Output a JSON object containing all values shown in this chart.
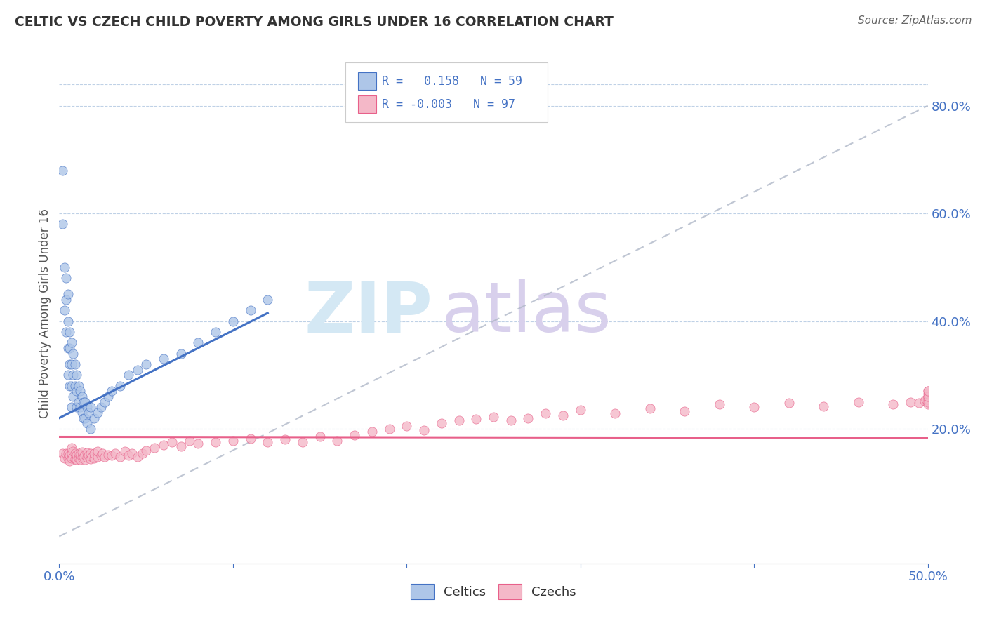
{
  "title": "CELTIC VS CZECH CHILD POVERTY AMONG GIRLS UNDER 16 CORRELATION CHART",
  "source": "Source: ZipAtlas.com",
  "ylabel": "Child Poverty Among Girls Under 16",
  "xlim": [
    0.0,
    0.5
  ],
  "ylim": [
    -0.05,
    0.88
  ],
  "yticks_right": [
    0.2,
    0.4,
    0.6,
    0.8
  ],
  "ytick_right_labels": [
    "20.0%",
    "40.0%",
    "60.0%",
    "80.0%"
  ],
  "celtics_color": "#aec6e8",
  "czechs_color": "#f4b8c8",
  "celtics_line_color": "#4472c4",
  "czechs_line_color": "#e8608a",
  "diag_line_color": "#b0b8c8",
  "legend_text_color": "#4472c4",
  "watermark_zip_color": "#d4e8f4",
  "watermark_atlas_color": "#d8d0ec",
  "celtic_line_x0": 0.0,
  "celtic_line_x1": 0.12,
  "celtic_line_y0": 0.22,
  "celtic_line_y1": 0.415,
  "czech_line_x0": 0.0,
  "czech_line_x1": 0.5,
  "czech_line_y0": 0.185,
  "czech_line_y1": 0.183,
  "celtics_x": [
    0.002,
    0.002,
    0.003,
    0.003,
    0.004,
    0.004,
    0.004,
    0.005,
    0.005,
    0.005,
    0.005,
    0.006,
    0.006,
    0.006,
    0.006,
    0.007,
    0.007,
    0.007,
    0.007,
    0.008,
    0.008,
    0.008,
    0.009,
    0.009,
    0.01,
    0.01,
    0.01,
    0.011,
    0.011,
    0.012,
    0.012,
    0.013,
    0.013,
    0.014,
    0.014,
    0.015,
    0.015,
    0.016,
    0.016,
    0.017,
    0.018,
    0.018,
    0.02,
    0.022,
    0.024,
    0.026,
    0.028,
    0.03,
    0.035,
    0.04,
    0.045,
    0.05,
    0.06,
    0.07,
    0.08,
    0.09,
    0.1,
    0.11,
    0.12
  ],
  "celtics_y": [
    0.68,
    0.58,
    0.5,
    0.42,
    0.48,
    0.44,
    0.38,
    0.45,
    0.4,
    0.35,
    0.3,
    0.38,
    0.35,
    0.32,
    0.28,
    0.36,
    0.32,
    0.28,
    0.24,
    0.34,
    0.3,
    0.26,
    0.32,
    0.28,
    0.3,
    0.27,
    0.24,
    0.28,
    0.25,
    0.27,
    0.24,
    0.26,
    0.23,
    0.25,
    0.22,
    0.25,
    0.22,
    0.24,
    0.21,
    0.23,
    0.24,
    0.2,
    0.22,
    0.23,
    0.24,
    0.25,
    0.26,
    0.27,
    0.28,
    0.3,
    0.31,
    0.32,
    0.33,
    0.34,
    0.36,
    0.38,
    0.4,
    0.42,
    0.44
  ],
  "czechs_x": [
    0.002,
    0.003,
    0.004,
    0.005,
    0.005,
    0.006,
    0.006,
    0.007,
    0.007,
    0.007,
    0.008,
    0.008,
    0.009,
    0.009,
    0.01,
    0.01,
    0.011,
    0.011,
    0.012,
    0.012,
    0.013,
    0.013,
    0.014,
    0.015,
    0.015,
    0.016,
    0.016,
    0.017,
    0.018,
    0.018,
    0.019,
    0.02,
    0.02,
    0.022,
    0.022,
    0.024,
    0.025,
    0.026,
    0.028,
    0.03,
    0.032,
    0.035,
    0.038,
    0.04,
    0.042,
    0.045,
    0.048,
    0.05,
    0.055,
    0.06,
    0.065,
    0.07,
    0.075,
    0.08,
    0.09,
    0.1,
    0.11,
    0.12,
    0.13,
    0.14,
    0.15,
    0.16,
    0.17,
    0.18,
    0.19,
    0.2,
    0.21,
    0.22,
    0.23,
    0.24,
    0.25,
    0.26,
    0.27,
    0.28,
    0.29,
    0.3,
    0.32,
    0.34,
    0.36,
    0.38,
    0.4,
    0.42,
    0.44,
    0.46,
    0.48,
    0.49,
    0.495,
    0.498,
    0.499,
    0.5,
    0.5,
    0.5,
    0.5,
    0.5,
    0.5,
    0.5,
    0.5
  ],
  "czechs_y": [
    0.155,
    0.145,
    0.155,
    0.145,
    0.155,
    0.14,
    0.15,
    0.145,
    0.155,
    0.165,
    0.148,
    0.158,
    0.144,
    0.154,
    0.142,
    0.152,
    0.145,
    0.155,
    0.143,
    0.153,
    0.147,
    0.157,
    0.148,
    0.142,
    0.152,
    0.146,
    0.156,
    0.15,
    0.144,
    0.154,
    0.148,
    0.145,
    0.155,
    0.148,
    0.158,
    0.15,
    0.155,
    0.148,
    0.152,
    0.15,
    0.155,
    0.148,
    0.158,
    0.15,
    0.155,
    0.148,
    0.155,
    0.16,
    0.165,
    0.17,
    0.175,
    0.168,
    0.178,
    0.172,
    0.175,
    0.178,
    0.182,
    0.175,
    0.18,
    0.175,
    0.185,
    0.178,
    0.188,
    0.195,
    0.2,
    0.205,
    0.198,
    0.21,
    0.215,
    0.218,
    0.222,
    0.215,
    0.22,
    0.228,
    0.225,
    0.235,
    0.228,
    0.238,
    0.232,
    0.245,
    0.24,
    0.248,
    0.242,
    0.25,
    0.245,
    0.25,
    0.248,
    0.252,
    0.255,
    0.258,
    0.245,
    0.255,
    0.265,
    0.27,
    0.25,
    0.26,
    0.27
  ]
}
